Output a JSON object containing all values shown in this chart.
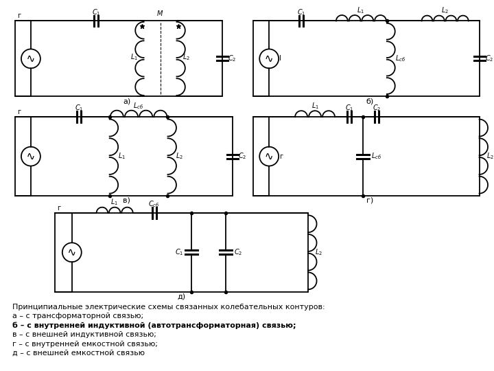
{
  "background": "#ffffff",
  "caption_lines": [
    "Принципиальные электрические схемы связанных колебательных контуров:",
    "а – с трансформаторной связью;",
    "б – с внутренней индуктивной (автотрансформаторная) связью;",
    "в – с внешней индуктивной связью;",
    "г – с внутренней емкостной связью;",
    "д – с внешней емкостной связью"
  ]
}
